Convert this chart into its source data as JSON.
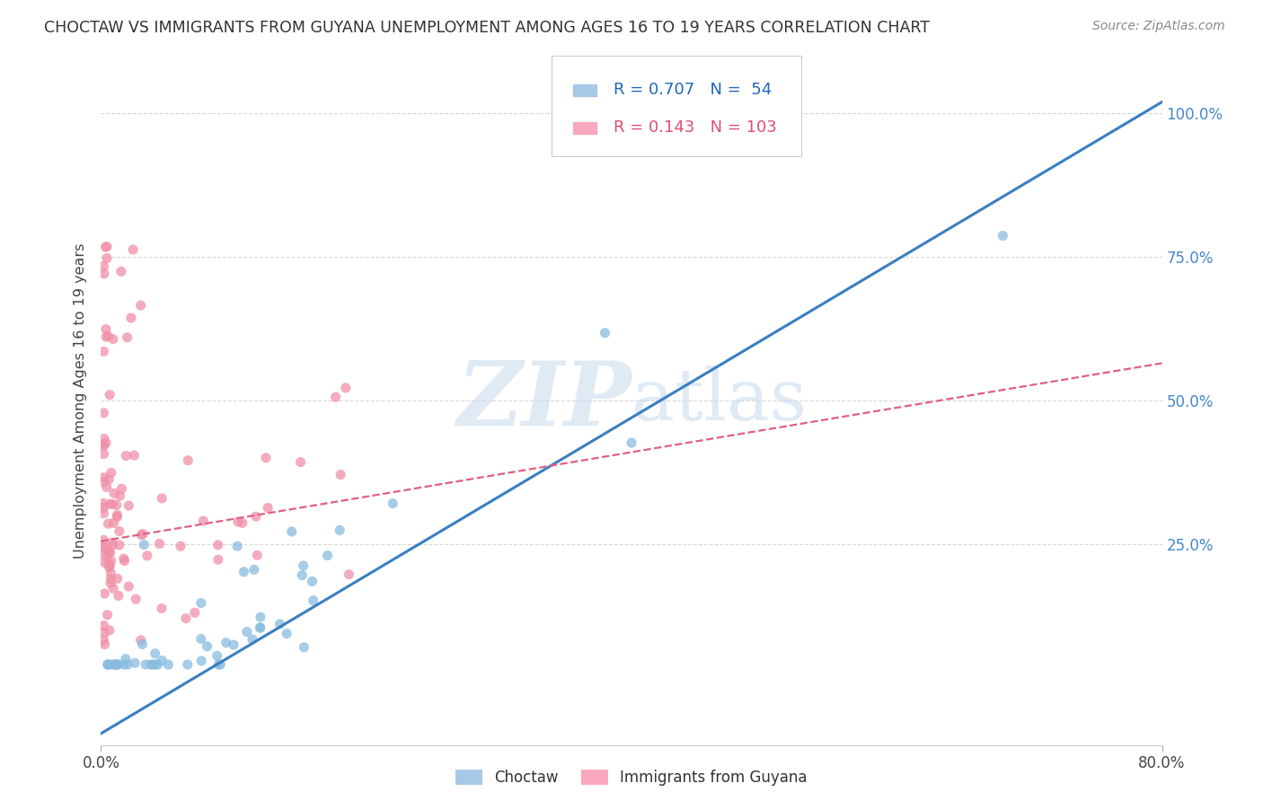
{
  "title": "CHOCTAW VS IMMIGRANTS FROM GUYANA UNEMPLOYMENT AMONG AGES 16 TO 19 YEARS CORRELATION CHART",
  "source": "Source: ZipAtlas.com",
  "ylabel": "Unemployment Among Ages 16 to 19 years",
  "legend_entries": [
    {
      "label": "Choctaw",
      "R": "0.707",
      "N": "54",
      "color": "#a8c8e8"
    },
    {
      "label": "Immigrants from Guyana",
      "R": "0.143",
      "N": "103",
      "color": "#f8a8bc"
    }
  ],
  "choctaw_color": "#88bce0",
  "guyana_color": "#f090a8",
  "choctaw_line_color": "#3a7fc1",
  "guyana_line_color": "#e06080",
  "watermark_zip": "ZIP",
  "watermark_atlas": "atlas",
  "background_color": "#ffffff",
  "grid_color": "#d8d8d8",
  "choctaw_line_x0": 0.0,
  "choctaw_line_y0": -0.08,
  "choctaw_line_x1": 0.8,
  "choctaw_line_y1": 1.02,
  "guyana_line_x0": 0.0,
  "guyana_line_y0": 0.255,
  "guyana_line_x1": 0.8,
  "guyana_line_y1": 0.565,
  "xmin": 0.0,
  "xmax": 0.8,
  "ymin": -0.1,
  "ymax": 1.1,
  "ytick_vals": [
    0.25,
    0.5,
    0.75,
    1.0
  ],
  "ytick_labels": [
    "25.0%",
    "50.0%",
    "75.0%",
    "100.0%"
  ]
}
